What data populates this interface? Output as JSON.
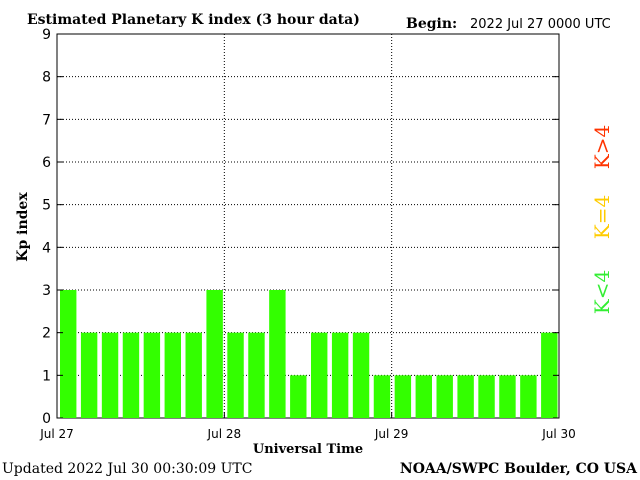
{
  "chart_data": {
    "type": "bar",
    "title": "Estimated Planetary K index (3 hour data)",
    "begin_label": "Begin:",
    "begin_value": "2022 Jul 27 0000 UTC",
    "ylabel": "Kp index",
    "xlabel": "Universal Time",
    "ylim": [
      0,
      9
    ],
    "yticks": [
      "0",
      "1",
      "2",
      "3",
      "4",
      "5",
      "6",
      "7",
      "8",
      "9"
    ],
    "x_tick_labels": [
      "Jul 27",
      "Jul 28",
      "Jul 29",
      "Jul 30"
    ],
    "grid": true,
    "values": [
      3,
      2,
      2,
      2,
      2,
      2,
      2,
      3,
      2,
      2,
      3,
      1,
      2,
      2,
      2,
      1,
      1,
      1,
      1,
      1,
      1,
      1,
      1,
      2
    ],
    "legend": [
      {
        "label": "K>4",
        "color": "#ff3300"
      },
      {
        "label": "K=4",
        "color": "#ffcc00"
      },
      {
        "label": "K<4",
        "color": "#33ee33"
      }
    ],
    "bar_color": "#33ff00"
  },
  "footer": {
    "updated": "Updated 2022 Jul 30 00:30:09 UTC",
    "source": "NOAA/SWPC Boulder, CO USA"
  }
}
